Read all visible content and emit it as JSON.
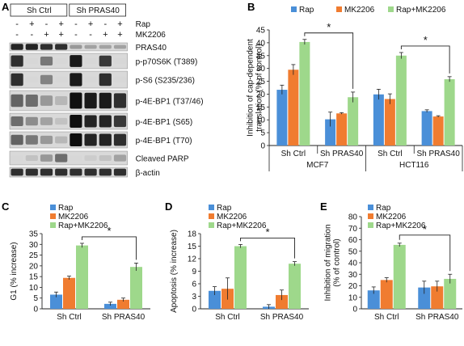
{
  "colors": {
    "rap": "#4a8fd8",
    "mk": "#f07c30",
    "combo": "#9ed88b",
    "axis": "#222222",
    "bracket": "#222222"
  },
  "panelA": {
    "letter": "A",
    "groups": [
      "Sh Ctrl",
      "Sh PRAS40"
    ],
    "treatments": [
      {
        "name": "Rap",
        "signs": [
          "-",
          "+",
          "-",
          "+",
          "-",
          "+",
          "-",
          "+"
        ]
      },
      {
        "name": "MK2206",
        "signs": [
          "-",
          "-",
          "+",
          "+",
          "-",
          "-",
          "+",
          "+"
        ]
      }
    ],
    "blots": [
      {
        "label": "PRAS40",
        "levels": [
          0.9,
          0.9,
          0.85,
          0.85,
          0.35,
          0.3,
          0.3,
          0.3
        ]
      },
      {
        "label": "p-p70S6K (T389)",
        "levels": [
          0.85,
          0.05,
          0.5,
          0.05,
          0.95,
          0.05,
          0.8,
          0.05
        ]
      },
      {
        "label": "p-S6 (S235/236)",
        "levels": [
          0.85,
          0.05,
          0.45,
          0.05,
          0.95,
          0.05,
          0.85,
          0.05
        ]
      },
      {
        "label": "p-4E-BP1 (T37/46)",
        "levels": [
          0.6,
          0.55,
          0.35,
          0.2,
          1.0,
          0.95,
          0.95,
          0.85
        ]
      },
      {
        "label": "p-4E-BP1 (S65)",
        "levels": [
          0.55,
          0.4,
          0.3,
          0.15,
          1.0,
          0.9,
          0.9,
          0.8
        ]
      },
      {
        "label": "p-4E-BP1 (T70)",
        "levels": [
          0.6,
          0.5,
          0.35,
          0.2,
          1.0,
          0.9,
          0.9,
          0.85
        ]
      },
      {
        "label": "Cleaved PARP",
        "levels": [
          0.05,
          0.15,
          0.35,
          0.55,
          0.05,
          0.1,
          0.15,
          0.3
        ]
      },
      {
        "label": "β-actin",
        "levels": [
          0.85,
          0.85,
          0.85,
          0.85,
          0.85,
          0.85,
          0.85,
          0.85
        ]
      }
    ]
  },
  "chart_data": [
    {
      "panel": "B",
      "type": "bar",
      "series_names": [
        "Rap",
        "MK2206",
        "Rap+MK2206"
      ],
      "ylabel": "Inhibition of cap-dependent translation (% of control)",
      "ylabel_lines": [
        "Inhibition of cap-dependent",
        "translation (% of control)"
      ],
      "ylim": [
        0,
        45
      ],
      "yticks": [
        0,
        5,
        10,
        15,
        20,
        25,
        30,
        35,
        40,
        45
      ],
      "groups": [
        {
          "label": "Sh Ctrl",
          "values": [
            21.7,
            29.5,
            40.3
          ],
          "errors": [
            1.8,
            2.0,
            1.0
          ]
        },
        {
          "label": "Sh PRAS40",
          "values": [
            10.2,
            12.5,
            18.8
          ],
          "errors": [
            2.8,
            0.3,
            2.0
          ]
        },
        {
          "label": "Sh Ctrl",
          "values": [
            19.9,
            18.1,
            35.0
          ],
          "errors": [
            2.0,
            2.0,
            1.2
          ]
        },
        {
          "label": "Sh PRAS40",
          "values": [
            13.4,
            11.3,
            25.8
          ],
          "errors": [
            0.5,
            0.3,
            1.0
          ]
        }
      ],
      "cell_lines": [
        "MCF7",
        "HCT116"
      ],
      "significance": [
        {
          "from_group": 0,
          "to_group": 1,
          "label": "*"
        },
        {
          "from_group": 2,
          "to_group": 3,
          "label": "*"
        }
      ],
      "legend_position": "top"
    },
    {
      "panel": "C",
      "type": "bar",
      "series_names": [
        "Rap",
        "MK2206",
        "Rap+MK2206"
      ],
      "ylabel": "G1 (% increase)",
      "ylim": [
        0,
        35
      ],
      "yticks": [
        0,
        5,
        10,
        15,
        20,
        25,
        30,
        35
      ],
      "groups": [
        {
          "label": "Sh Ctrl",
          "values": [
            6.6,
            14.4,
            29.5
          ],
          "errors": [
            1.2,
            0.8,
            1.0
          ]
        },
        {
          "label": "Sh PRAS40",
          "values": [
            2.3,
            4.2,
            19.5
          ],
          "errors": [
            0.8,
            0.8,
            1.8
          ]
        }
      ],
      "significance": [
        {
          "from_group": 0,
          "to_group": 1,
          "label": "*"
        }
      ],
      "legend_position": "top-left"
    },
    {
      "panel": "D",
      "type": "bar",
      "series_names": [
        "Rap",
        "MK2206",
        "Rap+MK2206"
      ],
      "ylabel": "Apoptosis (% increase)",
      "ylim": [
        0,
        18
      ],
      "yticks": [
        0,
        3,
        6,
        9,
        12,
        15,
        18
      ],
      "groups": [
        {
          "label": "Sh Ctrl",
          "values": [
            4.3,
            4.8,
            15.0
          ],
          "errors": [
            1.0,
            2.6,
            0.4
          ]
        },
        {
          "label": "Sh PRAS40",
          "values": [
            0.5,
            3.3,
            10.8
          ],
          "errors": [
            0.5,
            1.2,
            0.5
          ]
        }
      ],
      "significance": [
        {
          "from_group": 0,
          "to_group": 1,
          "label": "*"
        }
      ],
      "legend_position": "top-left"
    },
    {
      "panel": "E",
      "type": "bar",
      "series_names": [
        "Rap",
        "MK2206",
        "Rap+MK2206"
      ],
      "ylabel": "Inhibition of migration (% of control)",
      "ylabel_lines": [
        "Inhibition of migration",
        "(% of control)"
      ],
      "ylim": [
        0,
        80
      ],
      "yticks": [
        0,
        10,
        20,
        30,
        40,
        50,
        60,
        70,
        80
      ],
      "groups": [
        {
          "label": "Sh Ctrl",
          "values": [
            16.0,
            25.0,
            55.5
          ],
          "errors": [
            3.0,
            2.0,
            1.5
          ]
        },
        {
          "label": "Sh PRAS40",
          "values": [
            18.5,
            19.5,
            26.0
          ],
          "errors": [
            5.5,
            4.5,
            4.0
          ]
        }
      ],
      "significance": [
        {
          "from_group": 0,
          "to_group": 1,
          "label": "*"
        }
      ],
      "legend_position": "top-left"
    }
  ]
}
